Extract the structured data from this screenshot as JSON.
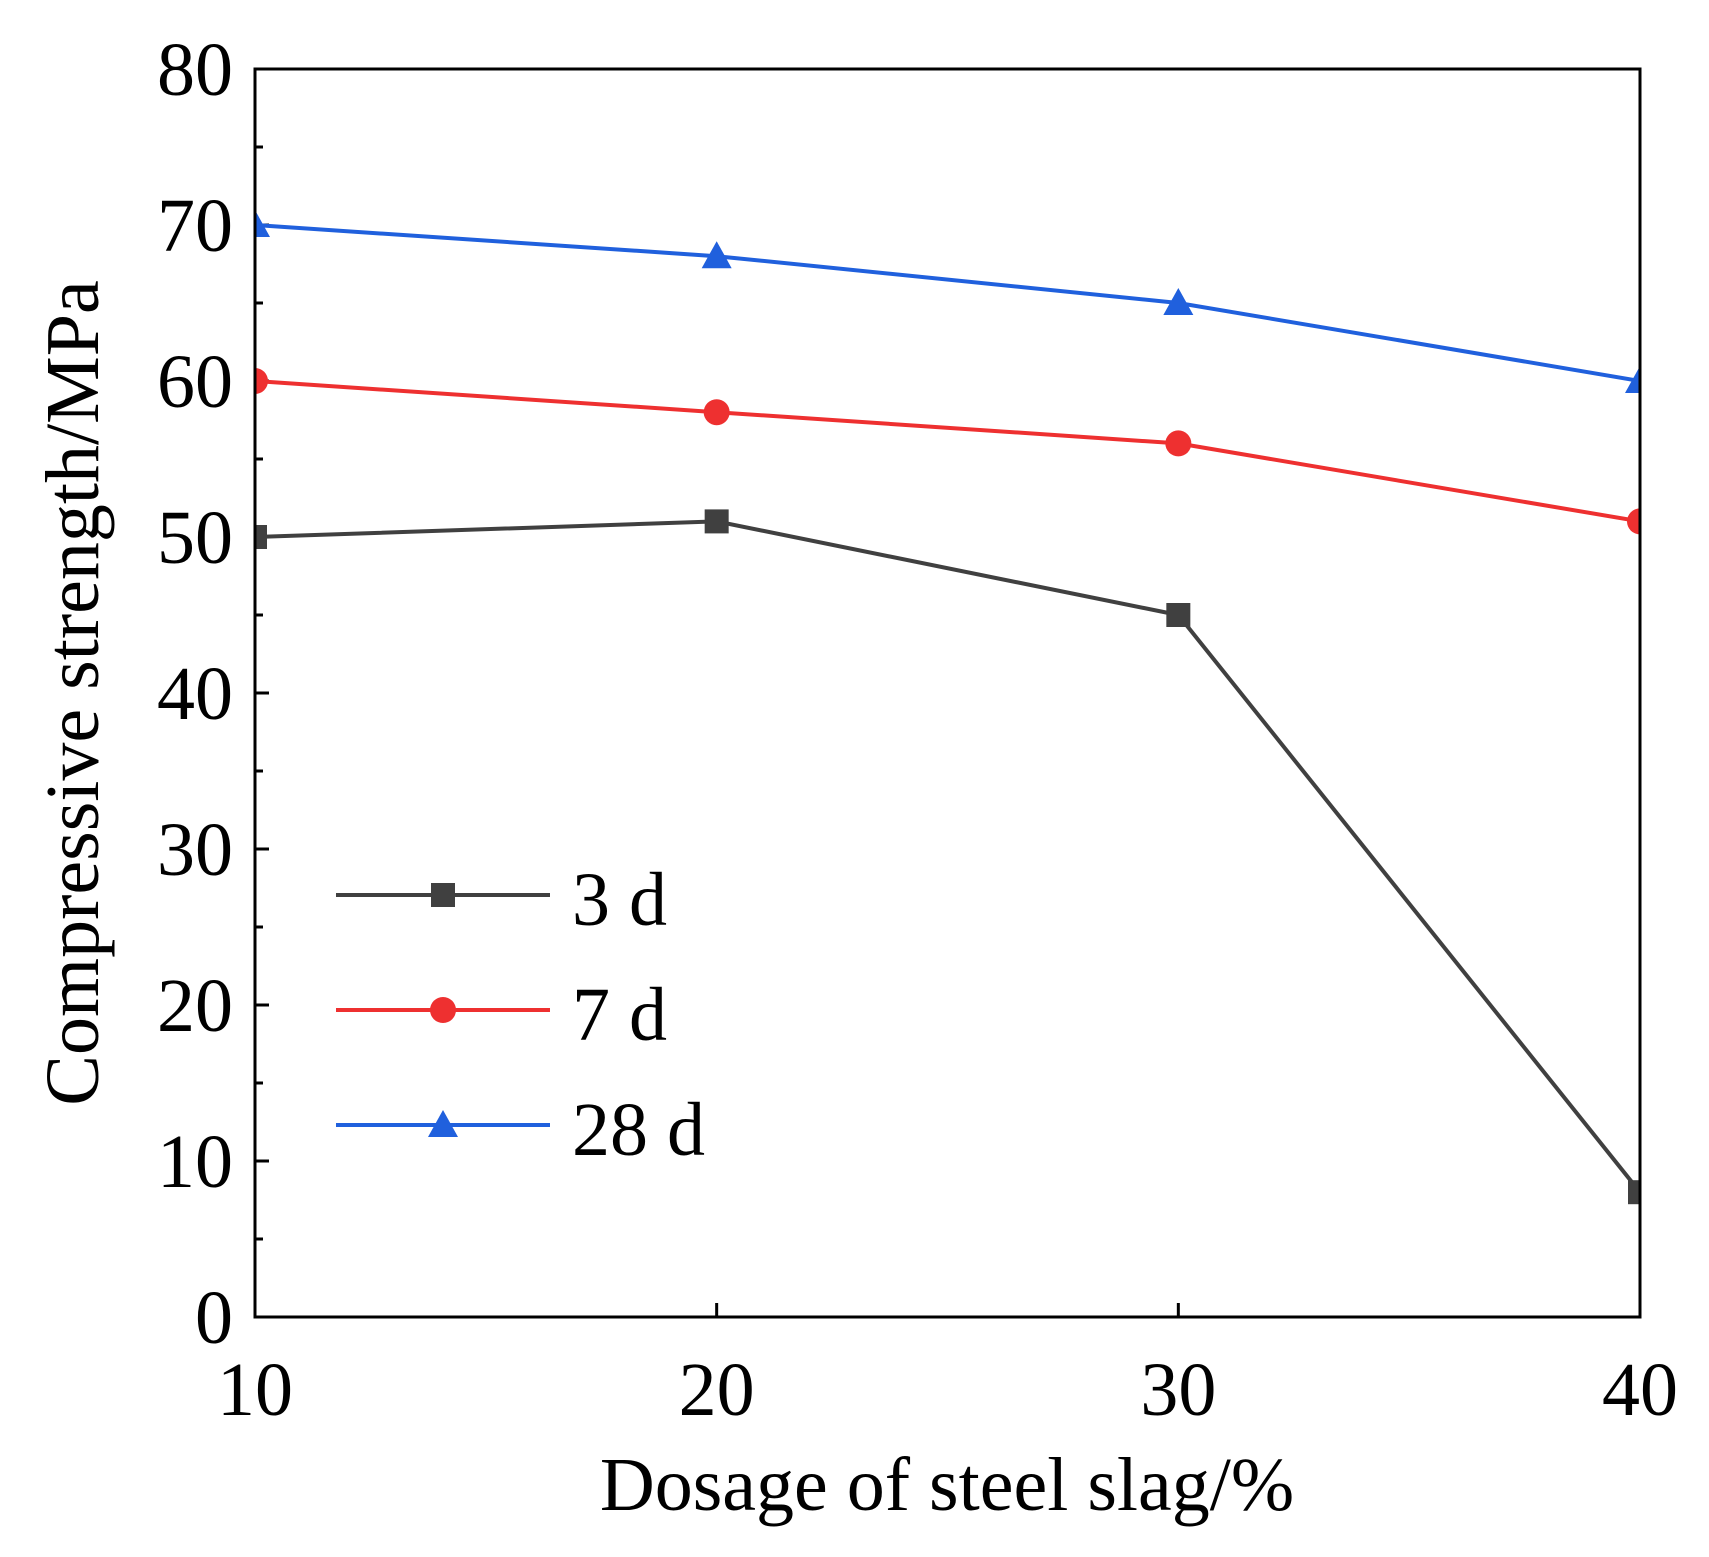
{
  "chart_data": {
    "type": "line",
    "title": "",
    "xlabel": "Dosage of steel slag/%",
    "ylabel": "Compressive strength/MPa",
    "xlim": [
      10,
      40
    ],
    "ylim": [
      0,
      80
    ],
    "x_ticks": [
      10,
      20,
      30,
      40
    ],
    "y_ticks": [
      0,
      10,
      20,
      30,
      40,
      50,
      60,
      70,
      80
    ],
    "x": [
      10,
      20,
      30,
      40
    ],
    "grid": false,
    "legend_position": "lower-left",
    "series": [
      {
        "name": "3 d",
        "values": [
          50,
          51,
          45,
          8
        ],
        "color": "#404040",
        "marker": "square"
      },
      {
        "name": "7 d",
        "values": [
          60,
          58,
          56,
          51
        ],
        "color": "#ee3030",
        "marker": "circle"
      },
      {
        "name": "28 d",
        "values": [
          70,
          68,
          65,
          60
        ],
        "color": "#2060dd",
        "marker": "triangle"
      }
    ]
  }
}
